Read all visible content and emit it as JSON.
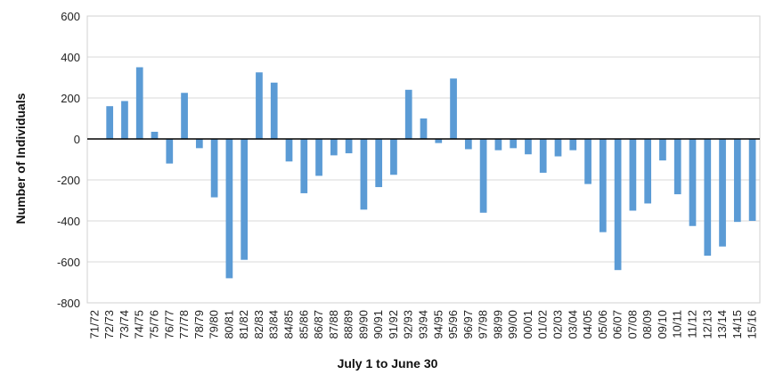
{
  "chart_data": {
    "type": "bar",
    "title": "",
    "xlabel": "July 1 to June 30",
    "ylabel": "Number of Individuals",
    "ylim": [
      -800,
      600
    ],
    "yticks": [
      600,
      400,
      200,
      0,
      -200,
      -400,
      -600,
      -800
    ],
    "ytick_labels": [
      "600",
      "400",
      "200",
      "0",
      "-200",
      "-400",
      "-600",
      "-800"
    ],
    "grid": true,
    "bar_color": "#5b9bd5",
    "categories": [
      "71/72",
      "72/73",
      "73/74",
      "74/75",
      "75/76",
      "76/77",
      "77/78",
      "78/79",
      "79/80",
      "80/81",
      "81/82",
      "82/83",
      "83/84",
      "84/85",
      "85/86",
      "86/87",
      "87/88",
      "88/89",
      "89/90",
      "90/91",
      "91/92",
      "92/93",
      "93/94",
      "94/95",
      "95/96",
      "96/97",
      "97/98",
      "98/99",
      "99/00",
      "00/01",
      "01/02",
      "02/03",
      "03/04",
      "04/05",
      "05/06",
      "06/07",
      "07/08",
      "08/09",
      "09/10",
      "10/11",
      "11/12",
      "12/13",
      "13/14",
      "14/15",
      "15/16"
    ],
    "values": [
      0,
      160,
      185,
      350,
      35,
      -120,
      225,
      -45,
      -285,
      -680,
      -590,
      325,
      275,
      -110,
      -265,
      -180,
      -80,
      -70,
      -345,
      -235,
      -175,
      240,
      100,
      -20,
      295,
      -50,
      -360,
      -55,
      -45,
      -75,
      -165,
      -85,
      -55,
      -220,
      -455,
      -640,
      -350,
      -315,
      -105,
      -270,
      -425,
      -570,
      -525,
      -405,
      -400
    ]
  }
}
